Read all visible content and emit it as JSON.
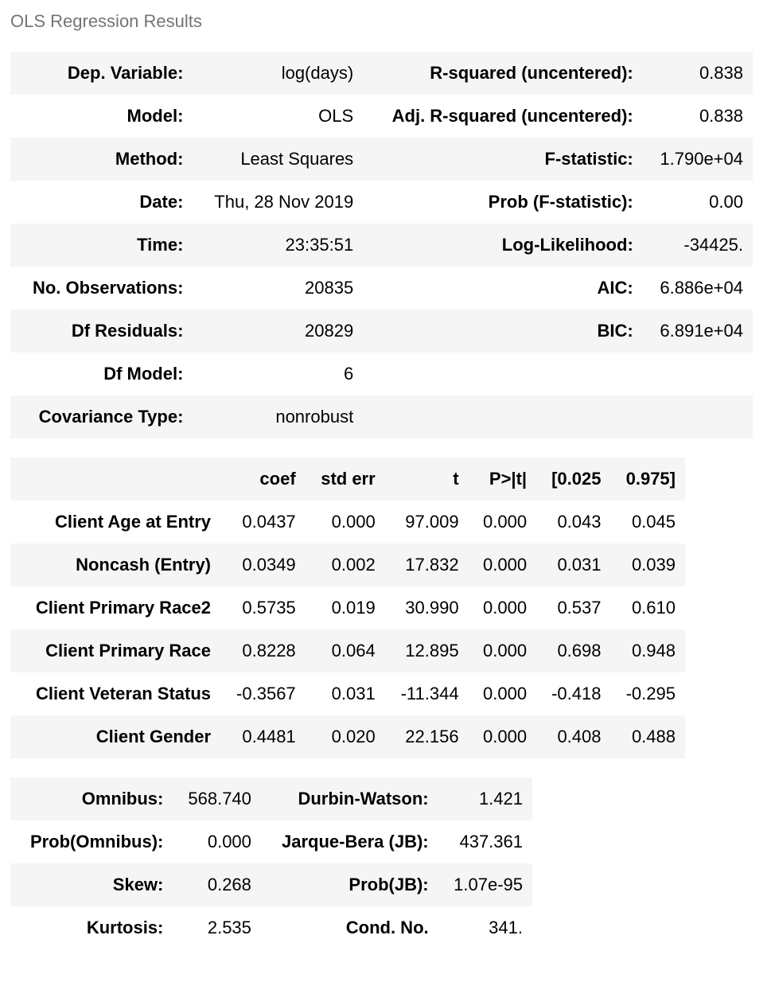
{
  "caption": "OLS Regression Results",
  "summary_rows": [
    {
      "l_label": "Dep. Variable:",
      "l_value": "log(days)",
      "r_label": "R-squared (uncentered):",
      "r_value": "0.838"
    },
    {
      "l_label": "Model:",
      "l_value": "OLS",
      "r_label": "Adj. R-squared (uncentered):",
      "r_value": "0.838"
    },
    {
      "l_label": "Method:",
      "l_value": "Least Squares",
      "r_label": "F-statistic:",
      "r_value": "1.790e+04"
    },
    {
      "l_label": "Date:",
      "l_value": "Thu, 28 Nov 2019",
      "r_label": "Prob (F-statistic):",
      "r_value": "0.00"
    },
    {
      "l_label": "Time:",
      "l_value": "23:35:51",
      "r_label": "Log-Likelihood:",
      "r_value": "-34425."
    },
    {
      "l_label": "No. Observations:",
      "l_value": "20835",
      "r_label": "AIC:",
      "r_value": "6.886e+04"
    },
    {
      "l_label": "Df Residuals:",
      "l_value": "20829",
      "r_label": "BIC:",
      "r_value": "6.891e+04"
    },
    {
      "l_label": "Df Model:",
      "l_value": "6",
      "r_label": "",
      "r_value": ""
    },
    {
      "l_label": "Covariance Type:",
      "l_value": "nonrobust",
      "r_label": "",
      "r_value": ""
    }
  ],
  "coef_table": {
    "headers": [
      "",
      "coef",
      "std err",
      "t",
      "P>|t|",
      "[0.025",
      "0.975]"
    ],
    "rows": [
      [
        "Client Age at Entry",
        "0.0437",
        "0.000",
        "97.009",
        "0.000",
        "0.043",
        "0.045"
      ],
      [
        "Noncash (Entry)",
        "0.0349",
        "0.002",
        "17.832",
        "0.000",
        "0.031",
        "0.039"
      ],
      [
        "Client Primary Race2",
        "0.5735",
        "0.019",
        "30.990",
        "0.000",
        "0.537",
        "0.610"
      ],
      [
        "Client Primary Race",
        "0.8228",
        "0.064",
        "12.895",
        "0.000",
        "0.698",
        "0.948"
      ],
      [
        "Client Veteran Status",
        "-0.3567",
        "0.031",
        "-11.344",
        "0.000",
        "-0.418",
        "-0.295"
      ],
      [
        "Client Gender",
        "0.4481",
        "0.020",
        "22.156",
        "0.000",
        "0.408",
        "0.488"
      ]
    ]
  },
  "diag_rows": [
    {
      "l_label": "Omnibus:",
      "l_value": "568.740",
      "r_label": "Durbin-Watson:",
      "r_value": "1.421"
    },
    {
      "l_label": "Prob(Omnibus):",
      "l_value": "0.000",
      "r_label": "Jarque-Bera (JB):",
      "r_value": "437.361"
    },
    {
      "l_label": "Skew:",
      "l_value": "0.268",
      "r_label": "Prob(JB):",
      "r_value": "1.07e-95"
    },
    {
      "l_label": "Kurtosis:",
      "l_value": "2.535",
      "r_label": "Cond. No.",
      "r_value": "341."
    }
  ]
}
